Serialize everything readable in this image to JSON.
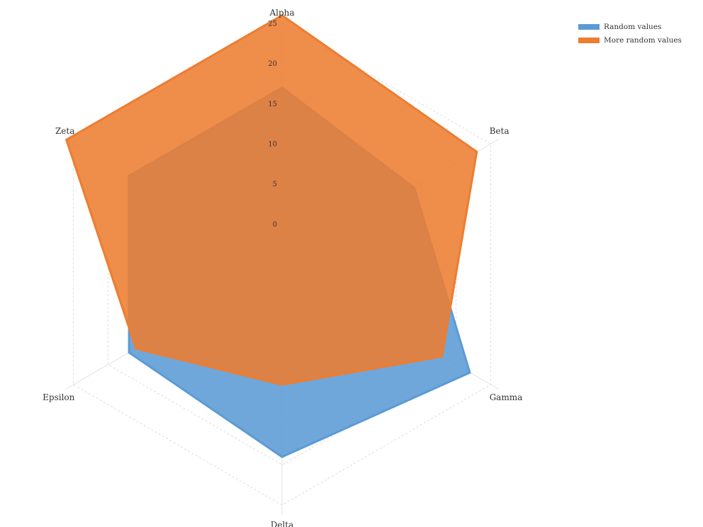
{
  "chart_data": {
    "type": "radar",
    "categories": [
      "Alpha",
      "Beta",
      "Gamma",
      "Delta",
      "Epsilon",
      "Zeta"
    ],
    "rlim": [
      -5,
      25
    ],
    "ticks": [
      0,
      5,
      10,
      15,
      20,
      25
    ],
    "grid": true,
    "legend_position": "top-right",
    "series": [
      {
        "name": "Random values",
        "values": [
          17,
          14,
          22,
          19,
          17,
          17
        ],
        "color": "#5b9bd5"
      },
      {
        "name": "More random values",
        "values": [
          26,
          23,
          18,
          10,
          16,
          26
        ],
        "color": "#ed7d31"
      }
    ]
  }
}
